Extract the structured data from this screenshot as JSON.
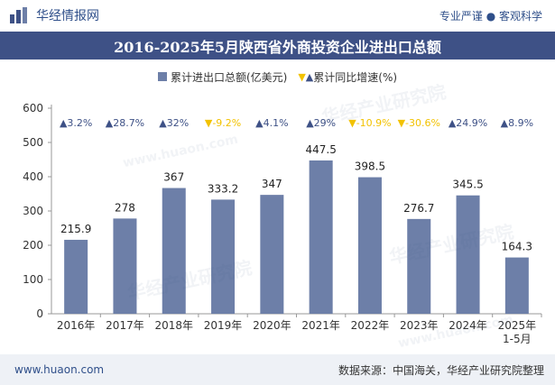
{
  "header": {
    "brand_name": "华经情报网",
    "tagline": "专业严谨 ● 客观科学"
  },
  "watermark": {
    "text": "华经产业研究院",
    "url_text": "www.huaon.com"
  },
  "footer": {
    "website": "www.huaon.com",
    "source": "数据来源：中国海关，华经产业研究院整理"
  },
  "colors": {
    "bar": "#6d7fa8",
    "up": "#3e5186",
    "down": "#f2c200",
    "title_bg": "#3e5186"
  },
  "chart_data": {
    "type": "bar",
    "title": "2016-2025年5月陕西省外商投资企业进出口总额",
    "categories": [
      "2016年",
      "2017年",
      "2018年",
      "2019年",
      "2020年",
      "2021年",
      "2022年",
      "2023年",
      "2024年",
      "2025年\n1-5月"
    ],
    "series": [
      {
        "name": "累计进出口总额(亿美元)",
        "values": [
          215.9,
          278,
          367,
          333.2,
          347,
          447.5,
          398.5,
          276.7,
          345.5,
          164.3
        ]
      }
    ],
    "growth": {
      "name": "累计同比增速(%)",
      "values": [
        "3.2%",
        "28.7%",
        "32%",
        "-9.2%",
        "4.1%",
        "29%",
        "-10.9%",
        "-30.6%",
        "24.9%",
        "8.9%"
      ],
      "direction": [
        "up",
        "up",
        "up",
        "down",
        "up",
        "up",
        "down",
        "down",
        "up",
        "up"
      ]
    },
    "ylim": [
      0,
      600
    ],
    "yticks": [
      0,
      100,
      200,
      300,
      400,
      500,
      600
    ],
    "grid": false,
    "legend_position": "top"
  }
}
